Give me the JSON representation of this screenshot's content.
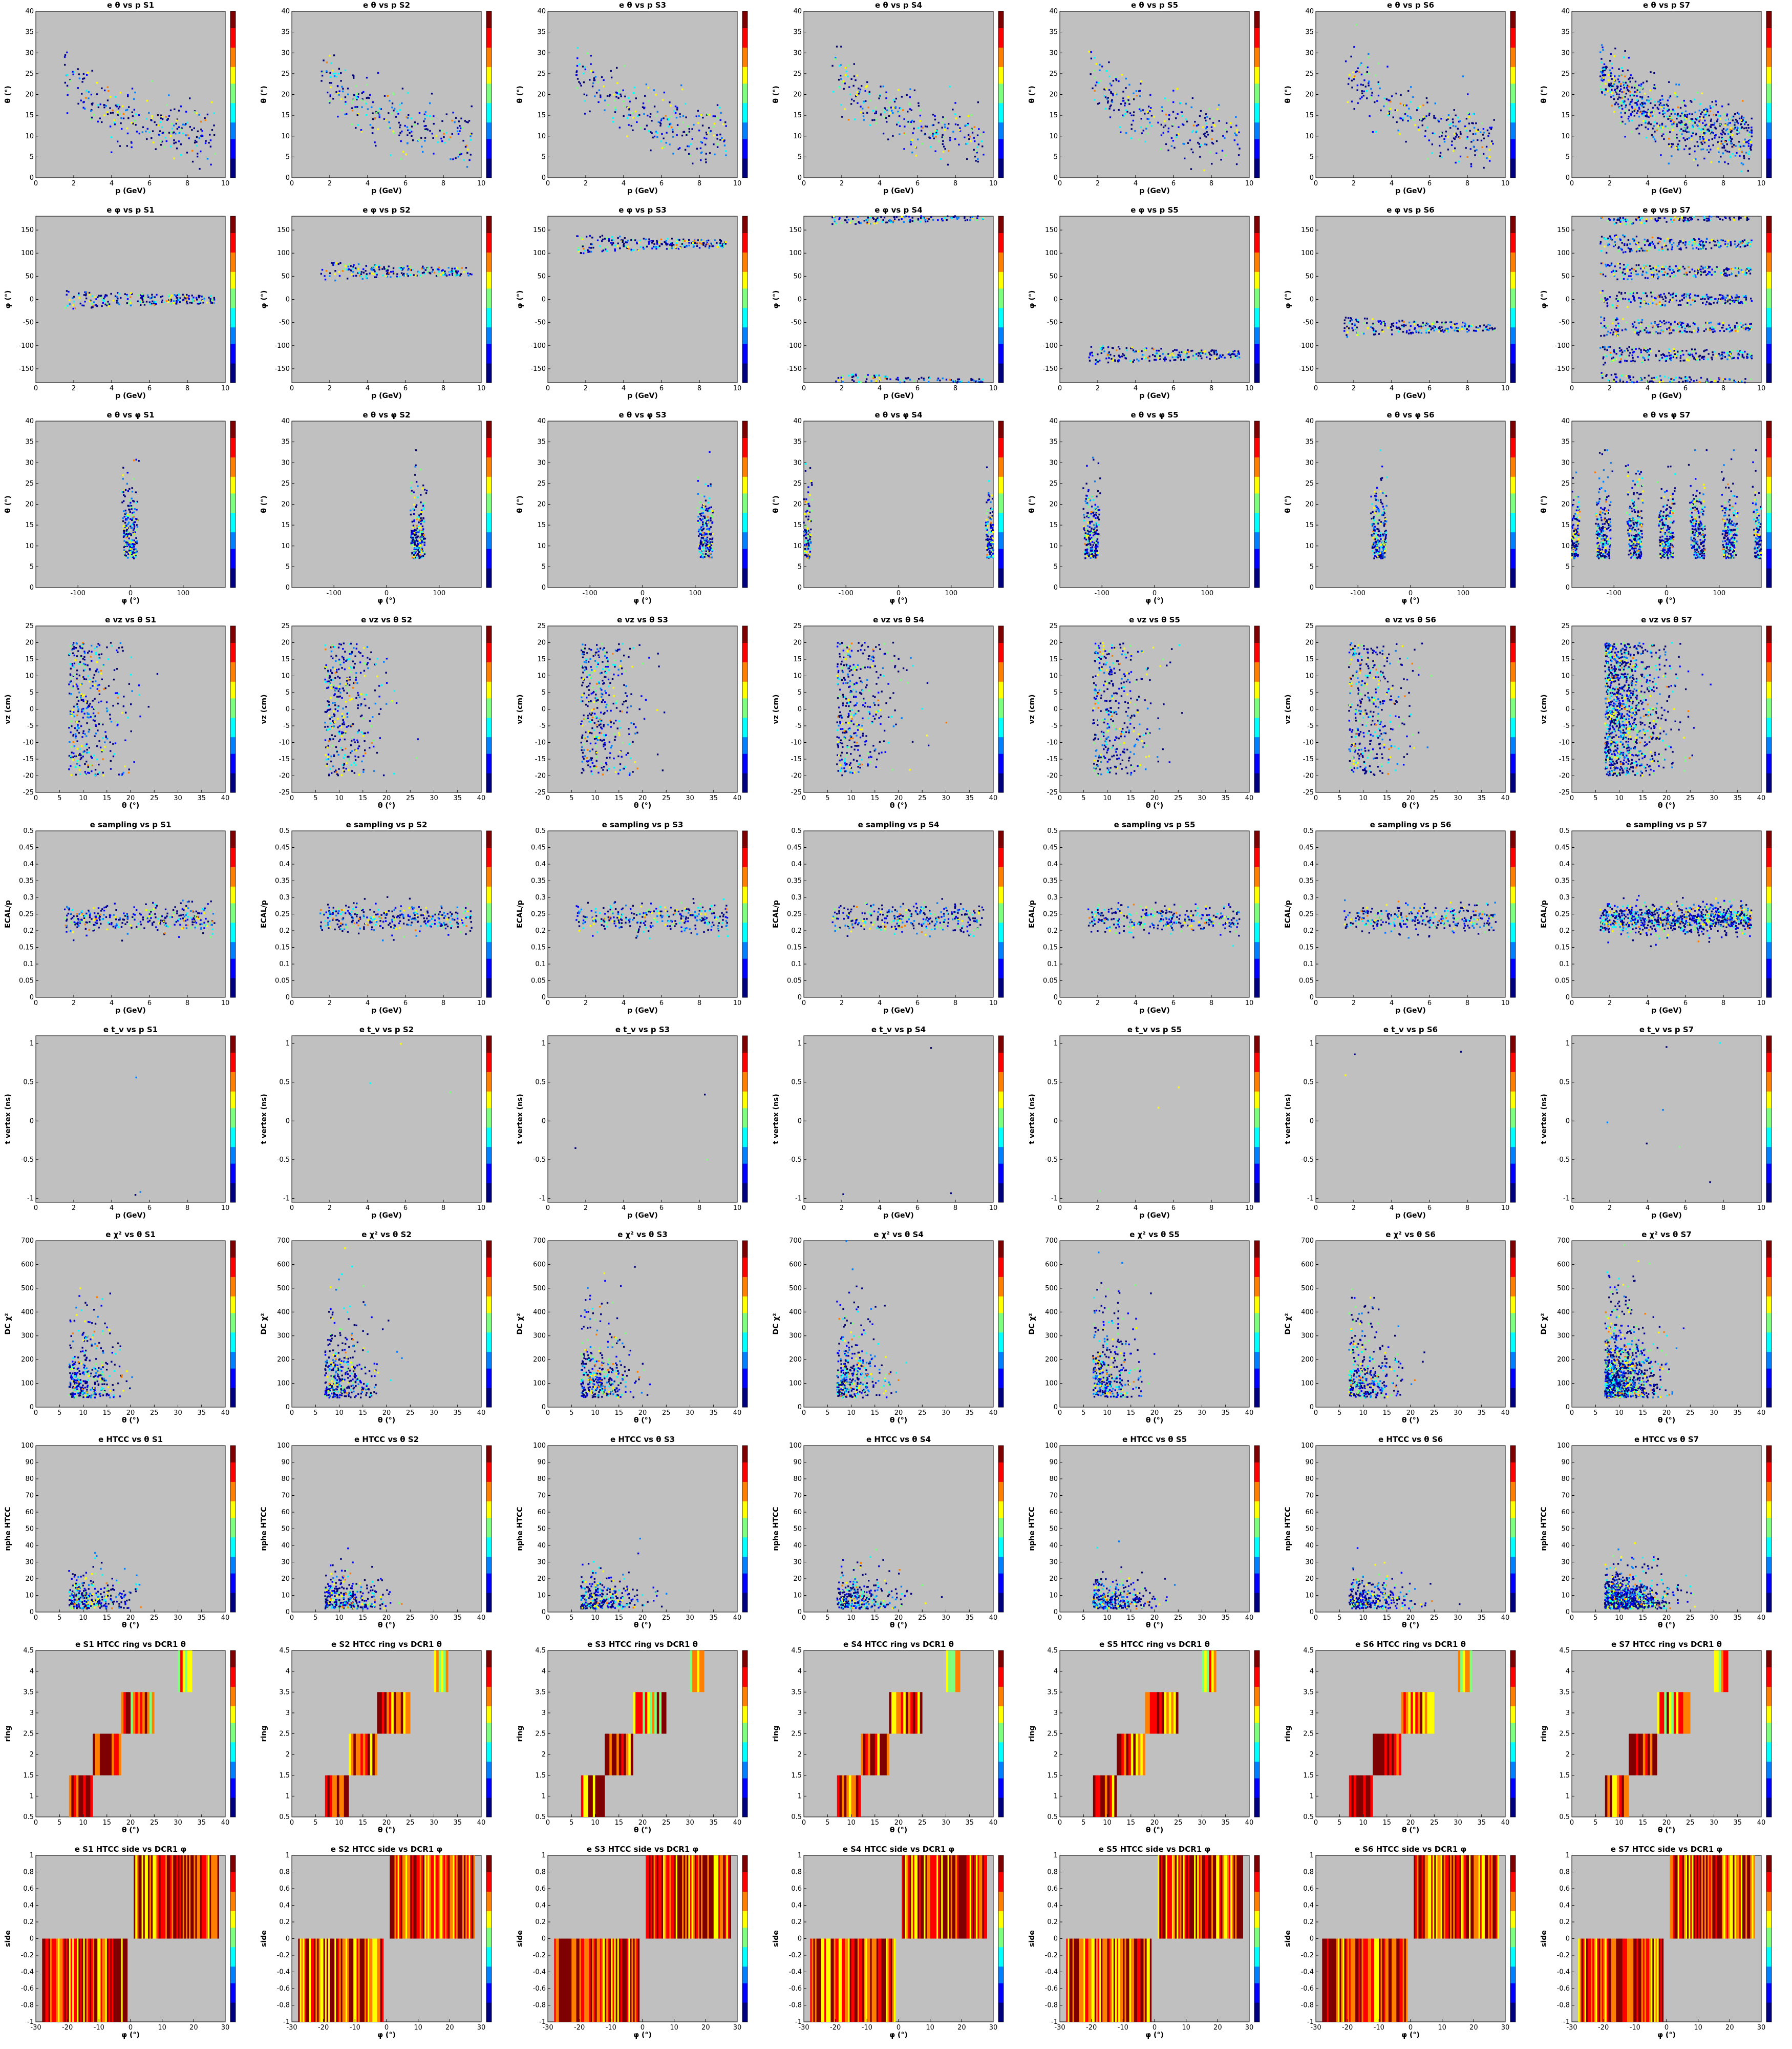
{
  "panel_style": {
    "plot_bg": "#c0c0c0",
    "colormap": [
      "#00007f",
      "#0000ff",
      "#007fff",
      "#00ffff",
      "#7fff7f",
      "#ffff00",
      "#ff7f00",
      "#ff0000",
      "#7f0000"
    ]
  },
  "rows": [
    {
      "id": "theta-vs-p",
      "title_template": "e θ vs p {S}",
      "xlabel": "p (GeV)",
      "ylabel": "θ (°)",
      "xlim": [
        0,
        10
      ],
      "ylim": [
        0,
        40
      ],
      "xticks": [
        0,
        2,
        4,
        6,
        8,
        10
      ],
      "yticks": [
        0,
        5,
        10,
        15,
        20,
        25,
        30,
        35,
        40
      ]
    },
    {
      "id": "phi-vs-p",
      "title_template": "e φ vs p {S}",
      "xlabel": "p (GeV)",
      "ylabel": "φ (°)",
      "xlim": [
        0,
        10
      ],
      "ylim": [
        -180,
        180
      ],
      "xticks": [
        0,
        2,
        4,
        6,
        8,
        10
      ],
      "yticks": [
        -150,
        -100,
        -50,
        0,
        50,
        100,
        150
      ]
    },
    {
      "id": "theta-vs-phi",
      "title_template": "e θ vs φ {S}",
      "xlabel": "φ (°)",
      "ylabel": "θ (°)",
      "xlim": [
        -180,
        180
      ],
      "ylim": [
        0,
        40
      ],
      "xticks": [
        -100,
        0,
        100
      ],
      "yticks": [
        0,
        5,
        10,
        15,
        20,
        25,
        30,
        35,
        40
      ]
    },
    {
      "id": "vz-vs-theta",
      "title_template": "e vz vs θ {S}",
      "xlabel": "θ (°)",
      "ylabel": "vz (cm)",
      "xlim": [
        0,
        40
      ],
      "ylim": [
        -25,
        25
      ],
      "xticks": [
        0,
        5,
        10,
        15,
        20,
        25,
        30,
        35,
        40
      ],
      "yticks": [
        -25,
        -20,
        -15,
        -10,
        -5,
        0,
        5,
        10,
        15,
        20,
        25
      ]
    },
    {
      "id": "sampling-vs-p",
      "title_template": "e sampling vs p {S}",
      "xlabel": "p (GeV)",
      "ylabel": "ECAL/p",
      "xlim": [
        0,
        10
      ],
      "ylim": [
        0,
        0.5
      ],
      "xticks": [
        0,
        2,
        4,
        6,
        8,
        10
      ],
      "yticks": [
        0.0,
        0.05,
        0.1,
        0.15,
        0.2,
        0.25,
        0.3,
        0.35,
        0.4,
        0.45,
        0.5
      ]
    },
    {
      "id": "tv-vs-p",
      "title_template": "e t_v vs p {S}",
      "xlabel": "p (GeV)",
      "ylabel": "t vertex (ns)",
      "xlim": [
        0,
        10
      ],
      "ylim": [
        -1.05,
        1.1
      ],
      "xticks": [
        0,
        2,
        4,
        6,
        8,
        10
      ],
      "yticks": [
        -1.0,
        -0.5,
        0.0,
        0.5,
        1.0
      ]
    },
    {
      "id": "chi2-vs-theta",
      "title_template": "e χ² vs θ {S}",
      "xlabel": "θ (°)",
      "ylabel": "DC χ²",
      "xlim": [
        0,
        40
      ],
      "ylim": [
        0,
        700
      ],
      "xticks": [
        0,
        5,
        10,
        15,
        20,
        25,
        30,
        35,
        40
      ],
      "yticks": [
        0,
        100,
        200,
        300,
        400,
        500,
        600,
        700
      ]
    },
    {
      "id": "htcc-vs-theta",
      "title_template": "e HTCC vs θ {S}",
      "xlabel": "θ (°)",
      "ylabel": "nphe HTCC",
      "xlim": [
        0,
        40
      ],
      "ylim": [
        0,
        100
      ],
      "xticks": [
        0,
        5,
        10,
        15,
        20,
        25,
        30,
        35,
        40
      ],
      "yticks": [
        0,
        10,
        20,
        30,
        40,
        50,
        60,
        70,
        80,
        90,
        100
      ]
    },
    {
      "id": "ring-vs-theta",
      "title_template": "e {S} HTCC ring vs DCR1 θ",
      "xlabel": "θ (°)",
      "ylabel": "ring",
      "xlim": [
        0,
        40
      ],
      "ylim": [
        0.5,
        4.5
      ],
      "xticks": [
        0,
        5,
        10,
        15,
        20,
        25,
        30,
        35,
        40
      ],
      "yticks": [
        0.5,
        1.0,
        1.5,
        2.0,
        2.5,
        3.0,
        3.5,
        4.0,
        4.5
      ]
    },
    {
      "id": "side-vs-phi",
      "title_template": "e {S} HTCC side vs DCR1 φ",
      "xlabel": "φ (°)",
      "ylabel": "side",
      "xlim": [
        -30,
        30
      ],
      "ylim": [
        -1.0,
        1.0
      ],
      "xticks": [
        -30,
        -20,
        -10,
        0,
        10,
        20,
        30
      ],
      "yticks": [
        -1.0,
        -0.8,
        -0.6,
        -0.4,
        -0.2,
        0.0,
        0.2,
        0.4,
        0.6,
        0.8,
        1.0
      ]
    }
  ],
  "sectors": [
    "S1",
    "S2",
    "S3",
    "S4",
    "S5",
    "S6",
    "S7"
  ],
  "chart_data": {
    "type": "heatmap",
    "layout": "10 rows x 7 sector columns of 2D histograms",
    "sector_phi_centers": [
      0,
      60,
      120,
      180,
      -120,
      -60
    ],
    "distributions": {
      "theta-vs-p": "θ falls from ~25° at p≈1.5 GeV to ~8° at p≈9.5 GeV in every sector",
      "phi-vs-p": "band at sector φ center, narrowing with p; S4 wraps at ±180; S7 shows all six bands",
      "theta-vs-phi": "vertical clusters at sector φ center, θ 7–32°",
      "vz-vs-theta": "vz -20 to 20 cm, θ 7–25°",
      "sampling-vs-p": "ECAL/p ≈ 0.24 ± 0.04 over p 1.5–9.5 GeV",
      "tv-vs-p": "a handful of isolated points",
      "chi2-vs-theta": "χ² peaked near 100 at θ≈10°, tail to 500",
      "htcc-vs-theta": "nphe ≈ 10 peaked at θ≈10°, tail to ~40",
      "ring-vs-theta": "ring 1: θ 7–12, ring 2: 12–18, ring 3: 18–25, ring 4: 30–35",
      "side-vs-phi": "side -1 for φ -28 to -2, side +1 for φ 2 to 28"
    }
  }
}
